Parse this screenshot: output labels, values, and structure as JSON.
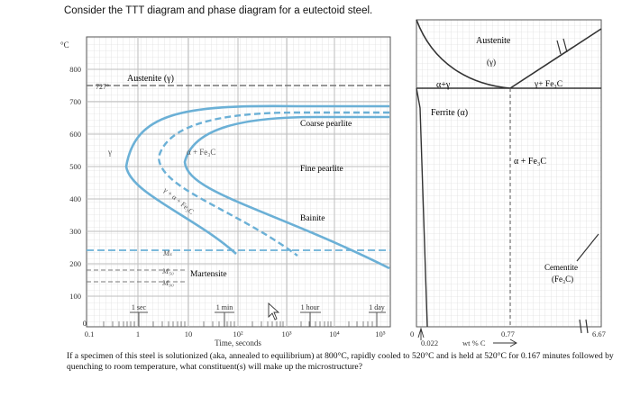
{
  "document": {
    "prompt": "Consider the TTT diagram and phase diagram for a eutectoid steel.",
    "question": "If a specimen of this steel is solutionized (aka, annealed to equilibrium) at 800°C, rapidly cooled to 520°C and is held at 520°C for 0.167 minutes followed by quenching to room temperature, what constituent(s) will make up the microstructure?"
  },
  "ttt": {
    "y_unit": "°C",
    "y_ticks": [
      "800",
      "700",
      "600",
      "500",
      "400",
      "300",
      "200",
      "100",
      "0"
    ],
    "x_ticks": [
      "0.1",
      "1",
      "10",
      "10²",
      "10³",
      "10⁴",
      "10⁵"
    ],
    "x_label": "Time, seconds",
    "temp_727": "727°",
    "regions": {
      "austenite": "Austenite (γ)",
      "gamma": "γ",
      "alpha_fe3c": "α + Fe₃C",
      "gamma_alpha_fe3c": "γ + α + Fe₃C",
      "coarse_pearlite": "Coarse pearlite",
      "fine_pearlite": "Fine pearlite",
      "bainite": "Bainite",
      "martensite": "Martensite"
    },
    "ms": "Mₛ",
    "m50": "M₅₀",
    "m90": "M₉₀",
    "time_markers": [
      "1 sec",
      "1 min",
      "1 hour",
      "1 day"
    ]
  },
  "phase": {
    "austenite": "Austenite",
    "austenite_symbol": "(γ)",
    "alpha_gamma": "α+γ",
    "gamma_fe3c": "γ+ Fe₃C",
    "ferrite": "Ferrite (α)",
    "alpha_fe3c": "α + Fe₃C",
    "cementite": "Cementite",
    "cementite_formula": "(Fe₃C)",
    "x_zero": "0",
    "x_0022": "0.022",
    "x_077": "0.77",
    "x_667": "6.67",
    "x_label": "wt % C"
  }
}
